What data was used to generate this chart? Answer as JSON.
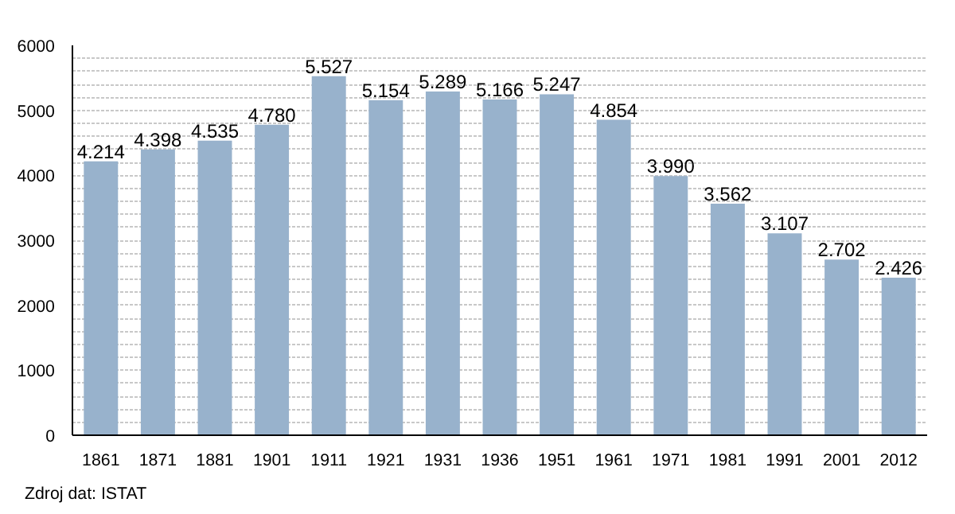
{
  "chart_data": {
    "type": "bar",
    "categories": [
      "1861",
      "1871",
      "1881",
      "1901",
      "1911",
      "1921",
      "1931",
      "1936",
      "1951",
      "1961",
      "1971",
      "1981",
      "1991",
      "2001",
      "2012"
    ],
    "values": [
      4214,
      4398,
      4535,
      4780,
      5527,
      5154,
      5289,
      5166,
      5247,
      4854,
      3990,
      3562,
      3107,
      2702,
      2426
    ],
    "value_labels": [
      "4.214",
      "4.398",
      "4.535",
      "4.780",
      "5.527",
      "5.154",
      "5.289",
      "5.166",
      "5.247",
      "4.854",
      "3.990",
      "3.562",
      "3.107",
      "2.702",
      "2.426"
    ],
    "color": "#98b2cc",
    "ylim": [
      0,
      6000
    ],
    "yticks": [
      0,
      {
        "value": 200,
        "label": null
      },
      {
        "value": 400,
        "label": null
      },
      {
        "value": 600,
        "label": null
      },
      {
        "value": 800,
        "label": null
      },
      1000,
      {
        "value": 1200,
        "label": null
      },
      {
        "value": 1400,
        "label": null
      },
      {
        "value": 1600,
        "label": null
      },
      {
        "value": 1800,
        "label": null
      },
      2000,
      {
        "value": 2200,
        "label": null
      },
      {
        "value": 2400,
        "label": null
      },
      {
        "value": 2600,
        "label": null
      },
      {
        "value": 2800,
        "label": null
      },
      3000,
      {
        "value": 3200,
        "label": null
      },
      {
        "value": 3400,
        "label": null
      },
      {
        "value": 3600,
        "label": null
      },
      {
        "value": 3800,
        "label": null
      },
      4000,
      {
        "value": 4200,
        "label": null
      },
      {
        "value": 4400,
        "label": null
      },
      {
        "value": 4600,
        "label": null
      },
      {
        "value": 4800,
        "label": null
      },
      5000,
      {
        "value": 5200,
        "label": null
      },
      {
        "value": 5400,
        "label": null
      },
      {
        "value": 5600,
        "label": null
      },
      {
        "value": 5800,
        "label": null
      },
      6000
    ],
    "grid": "y",
    "annotations": [
      "Zdroj dat: ISTAT"
    ]
  }
}
